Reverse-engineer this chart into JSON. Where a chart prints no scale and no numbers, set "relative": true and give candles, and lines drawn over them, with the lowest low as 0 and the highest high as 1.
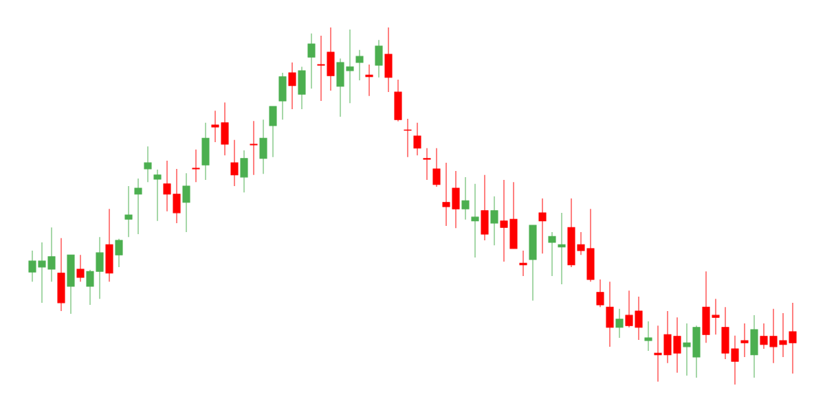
{
  "chart_data": {
    "type": "candlestick",
    "relative": true,
    "categories": [
      null,
      null,
      null,
      null,
      null,
      null,
      null,
      null,
      null,
      null,
      null,
      null,
      null,
      null,
      null,
      null,
      null,
      null,
      null,
      null,
      null,
      null,
      null,
      null,
      null,
      null,
      null,
      null,
      null,
      null,
      null,
      null,
      null,
      null,
      null,
      null,
      null,
      null,
      null,
      null,
      null,
      null,
      null,
      null,
      null,
      null,
      null,
      null,
      null,
      null,
      null,
      null,
      null,
      null,
      null,
      null,
      null,
      null,
      null,
      null,
      null,
      null,
      null,
      null,
      null,
      null,
      null,
      null,
      null,
      null,
      null,
      null,
      null,
      null,
      null,
      null,
      null,
      null,
      null,
      null
    ],
    "ohlc": [
      [
        0.315,
        0.375,
        0.288,
        0.346
      ],
      [
        0.329,
        0.398,
        0.229,
        0.346
      ],
      [
        0.323,
        0.44,
        0.288,
        0.358
      ],
      [
        0.312,
        0.41,
        0.206,
        0.229
      ],
      [
        0.275,
        0.363,
        0.198,
        0.363
      ],
      [
        0.323,
        0.363,
        0.288,
        0.3
      ],
      [
        0.275,
        0.321,
        0.223,
        0.317
      ],
      [
        0.317,
        0.413,
        0.24,
        0.369
      ],
      [
        0.392,
        0.492,
        0.288,
        0.312
      ],
      [
        0.363,
        0.408,
        0.329,
        0.404
      ],
      [
        0.463,
        0.556,
        0.413,
        0.475
      ],
      [
        0.533,
        0.577,
        0.421,
        0.55
      ],
      [
        0.604,
        0.667,
        0.567,
        0.621
      ],
      [
        0.575,
        0.602,
        0.458,
        0.587
      ],
      [
        0.562,
        0.627,
        0.485,
        0.533
      ],
      [
        0.533,
        0.604,
        0.452,
        0.481
      ],
      [
        0.51,
        0.592,
        0.427,
        0.556
      ],
      [
        0.606,
        0.658,
        0.567,
        0.604
      ],
      [
        0.615,
        0.733,
        0.573,
        0.69
      ],
      [
        0.727,
        0.767,
        0.679,
        0.721
      ],
      [
        0.733,
        0.79,
        0.642,
        0.673
      ],
      [
        0.621,
        0.685,
        0.556,
        0.587
      ],
      [
        0.581,
        0.656,
        0.538,
        0.633
      ],
      [
        0.673,
        0.738,
        0.587,
        0.671
      ],
      [
        0.633,
        0.742,
        0.59,
        0.69
      ],
      [
        0.725,
        0.779,
        0.637,
        0.779
      ],
      [
        0.794,
        0.873,
        0.742,
        0.862
      ],
      [
        0.873,
        0.902,
        0.771,
        0.837
      ],
      [
        0.813,
        0.89,
        0.771,
        0.879
      ],
      [
        0.917,
        0.983,
        0.829,
        0.954
      ],
      [
        0.896,
        0.977,
        0.794,
        0.894
      ],
      [
        0.931,
        1.0,
        0.823,
        0.865
      ],
      [
        0.835,
        0.913,
        0.75,
        0.902
      ],
      [
        0.879,
        0.994,
        0.788,
        0.89
      ],
      [
        0.902,
        0.937,
        0.852,
        0.919
      ],
      [
        0.867,
        0.896,
        0.808,
        0.862
      ],
      [
        0.894,
        0.965,
        0.86,
        0.948
      ],
      [
        0.925,
        1.0,
        0.819,
        0.86
      ],
      [
        0.819,
        0.854,
        0.737,
        0.742
      ],
      [
        0.713,
        0.744,
        0.637,
        0.712
      ],
      [
        0.696,
        0.733,
        0.642,
        0.662
      ],
      [
        0.633,
        0.662,
        0.573,
        0.631
      ],
      [
        0.604,
        0.662,
        0.554,
        0.56
      ],
      [
        0.51,
        0.621,
        0.444,
        0.498
      ],
      [
        0.55,
        0.598,
        0.438,
        0.492
      ],
      [
        0.492,
        0.581,
        0.462,
        0.515
      ],
      [
        0.458,
        0.562,
        0.356,
        0.469
      ],
      [
        0.487,
        0.587,
        0.404,
        0.421
      ],
      [
        0.452,
        0.527,
        0.39,
        0.487
      ],
      [
        0.458,
        0.573,
        0.344,
        0.44
      ],
      [
        0.463,
        0.567,
        0.381,
        0.381
      ],
      [
        0.34,
        0.375,
        0.304,
        0.335
      ],
      [
        0.35,
        0.446,
        0.235,
        0.446
      ],
      [
        0.481,
        0.521,
        0.367,
        0.458
      ],
      [
        0.398,
        0.427,
        0.304,
        0.415
      ],
      [
        0.385,
        0.481,
        0.281,
        0.392
      ],
      [
        0.44,
        0.521,
        0.329,
        0.335
      ],
      [
        0.392,
        0.427,
        0.363,
        0.375
      ],
      [
        0.381,
        0.492,
        0.288,
        0.294
      ],
      [
        0.258,
        0.294,
        0.217,
        0.223
      ],
      [
        0.217,
        0.288,
        0.106,
        0.16
      ],
      [
        0.16,
        0.212,
        0.131,
        0.183
      ],
      [
        0.194,
        0.263,
        0.16,
        0.165
      ],
      [
        0.206,
        0.246,
        0.125,
        0.16
      ],
      [
        0.123,
        0.177,
        0.094,
        0.131
      ],
      [
        0.088,
        0.165,
        0.008,
        0.083
      ],
      [
        0.14,
        0.206,
        0.06,
        0.083
      ],
      [
        0.135,
        0.188,
        0.033,
        0.088
      ],
      [
        0.106,
        0.171,
        0.025,
        0.117
      ],
      [
        0.077,
        0.165,
        0.019,
        0.16
      ],
      [
        0.217,
        0.317,
        0.117,
        0.14
      ],
      [
        0.194,
        0.24,
        0.14,
        0.188
      ],
      [
        0.16,
        0.217,
        0.071,
        0.088
      ],
      [
        0.1,
        0.137,
        0.0,
        0.065
      ],
      [
        0.123,
        0.171,
        0.077,
        0.117
      ],
      [
        0.083,
        0.194,
        0.019,
        0.154
      ],
      [
        0.135,
        0.171,
        0.1,
        0.112
      ],
      [
        0.135,
        0.212,
        0.06,
        0.106
      ],
      [
        0.123,
        0.2,
        0.077,
        0.112
      ],
      [
        0.148,
        0.229,
        0.031,
        0.117
      ]
    ],
    "colors": [
      "#4caf50",
      "#4caf50",
      "#4caf50",
      "#ff0000",
      "#4caf50",
      "#ff0000",
      "#4caf50",
      "#4caf50",
      "#ff0000",
      "#4caf50",
      "#4caf50",
      "#4caf50",
      "#4caf50",
      "#4caf50",
      "#ff0000",
      "#ff0000",
      "#4caf50",
      "#ff0000",
      "#4caf50",
      "#ff0000",
      "#ff0000",
      "#ff0000",
      "#4caf50",
      "#ff0000",
      "#4caf50",
      "#4caf50",
      "#4caf50",
      "#ff0000",
      "#4caf50",
      "#4caf50",
      "#ff0000",
      "#ff0000",
      "#4caf50",
      "#4caf50",
      "#4caf50",
      "#ff0000",
      "#4caf50",
      "#ff0000",
      "#ff0000",
      "#ff0000",
      "#ff0000",
      "#ff0000",
      "#ff0000",
      "#ff0000",
      "#ff0000",
      "#4caf50",
      "#4caf50",
      "#ff0000",
      "#4caf50",
      "#ff0000",
      "#ff0000",
      "#ff0000",
      "#4caf50",
      "#ff0000",
      "#4caf50",
      "#4caf50",
      "#ff0000",
      "#ff0000",
      "#ff0000",
      "#ff0000",
      "#ff0000",
      "#4caf50",
      "#ff0000",
      "#ff0000",
      "#4caf50",
      "#ff0000",
      "#ff0000",
      "#ff0000",
      "#4caf50",
      "#4caf50",
      "#ff0000",
      "#ff0000",
      "#ff0000",
      "#ff0000",
      "#ff0000",
      "#4caf50",
      "#ff0000",
      "#ff0000",
      "#ff0000",
      "#ff0000"
    ]
  }
}
